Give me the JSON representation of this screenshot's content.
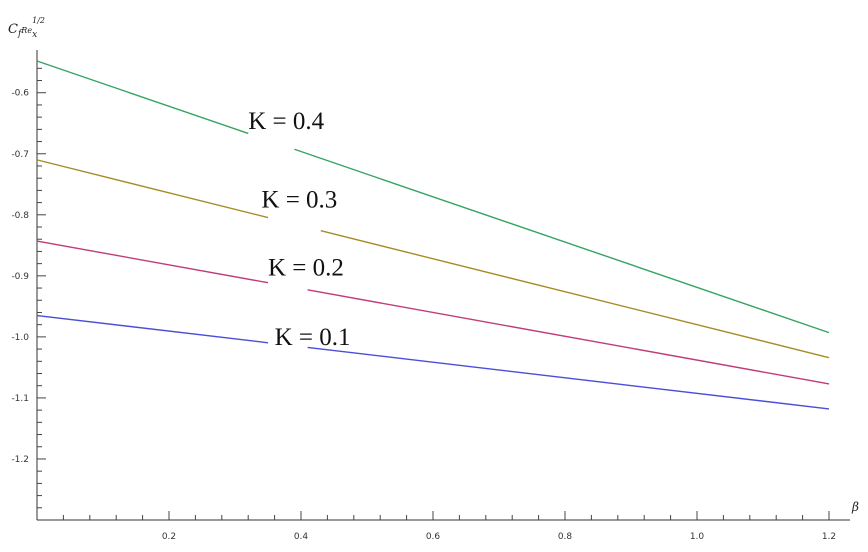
{
  "chart_data": {
    "type": "line",
    "ylabel_main": "C",
    "ylabel_sub": "f",
    "ylabel_re": "Re",
    "ylabel_x": "x",
    "ylabel_exp": "1/2",
    "xlabel": "β",
    "xlim": [
      0,
      1.2
    ],
    "ylim": [
      -1.3,
      -0.53
    ],
    "x_ticks": [
      {
        "value": 0.2,
        "label": "0.2"
      },
      {
        "value": 0.4,
        "label": "0.4"
      },
      {
        "value": 0.6,
        "label": "0.6"
      },
      {
        "value": 0.8,
        "label": "0.8"
      },
      {
        "value": 1.0,
        "label": "1.0"
      },
      {
        "value": 1.2,
        "label": "1.2"
      }
    ],
    "y_ticks": [
      {
        "value": -0.6,
        "label": "-0.6"
      },
      {
        "value": -0.7,
        "label": "-0.7"
      },
      {
        "value": -0.8,
        "label": "-0.8"
      },
      {
        "value": -0.9,
        "label": "-0.9"
      },
      {
        "value": -1.0,
        "label": "-1.0"
      },
      {
        "value": -1.1,
        "label": "-1.1"
      },
      {
        "value": -1.2,
        "label": "-1.2"
      }
    ],
    "grid": false,
    "series": [
      {
        "name": "K = 0.1",
        "color": "#4a4ed8",
        "x": [
          0,
          1.2
        ],
        "y": [
          -0.965,
          -1.118
        ],
        "gap": [
          0.35,
          0.41
        ],
        "label_x": 0.36,
        "label_y": -1.0
      },
      {
        "name": "K = 0.2",
        "color": "#c03c78",
        "x": [
          0,
          1.2
        ],
        "y": [
          -0.843,
          -1.077
        ],
        "gap": [
          0.35,
          0.41
        ],
        "label_x": 0.35,
        "label_y": -0.886
      },
      {
        "name": "K = 0.3",
        "color": "#a58d2a",
        "x": [
          0,
          1.2
        ],
        "y": [
          -0.71,
          -1.034
        ],
        "gap": [
          0.35,
          0.43
        ],
        "label_x": 0.34,
        "label_y": -0.775
      },
      {
        "name": "K = 0.4",
        "color": "#33a462",
        "x": [
          0,
          1.2
        ],
        "y": [
          -0.548,
          -0.993
        ],
        "gap": [
          0.32,
          0.39
        ],
        "label_x": 0.32,
        "label_y": -0.646
      }
    ]
  }
}
